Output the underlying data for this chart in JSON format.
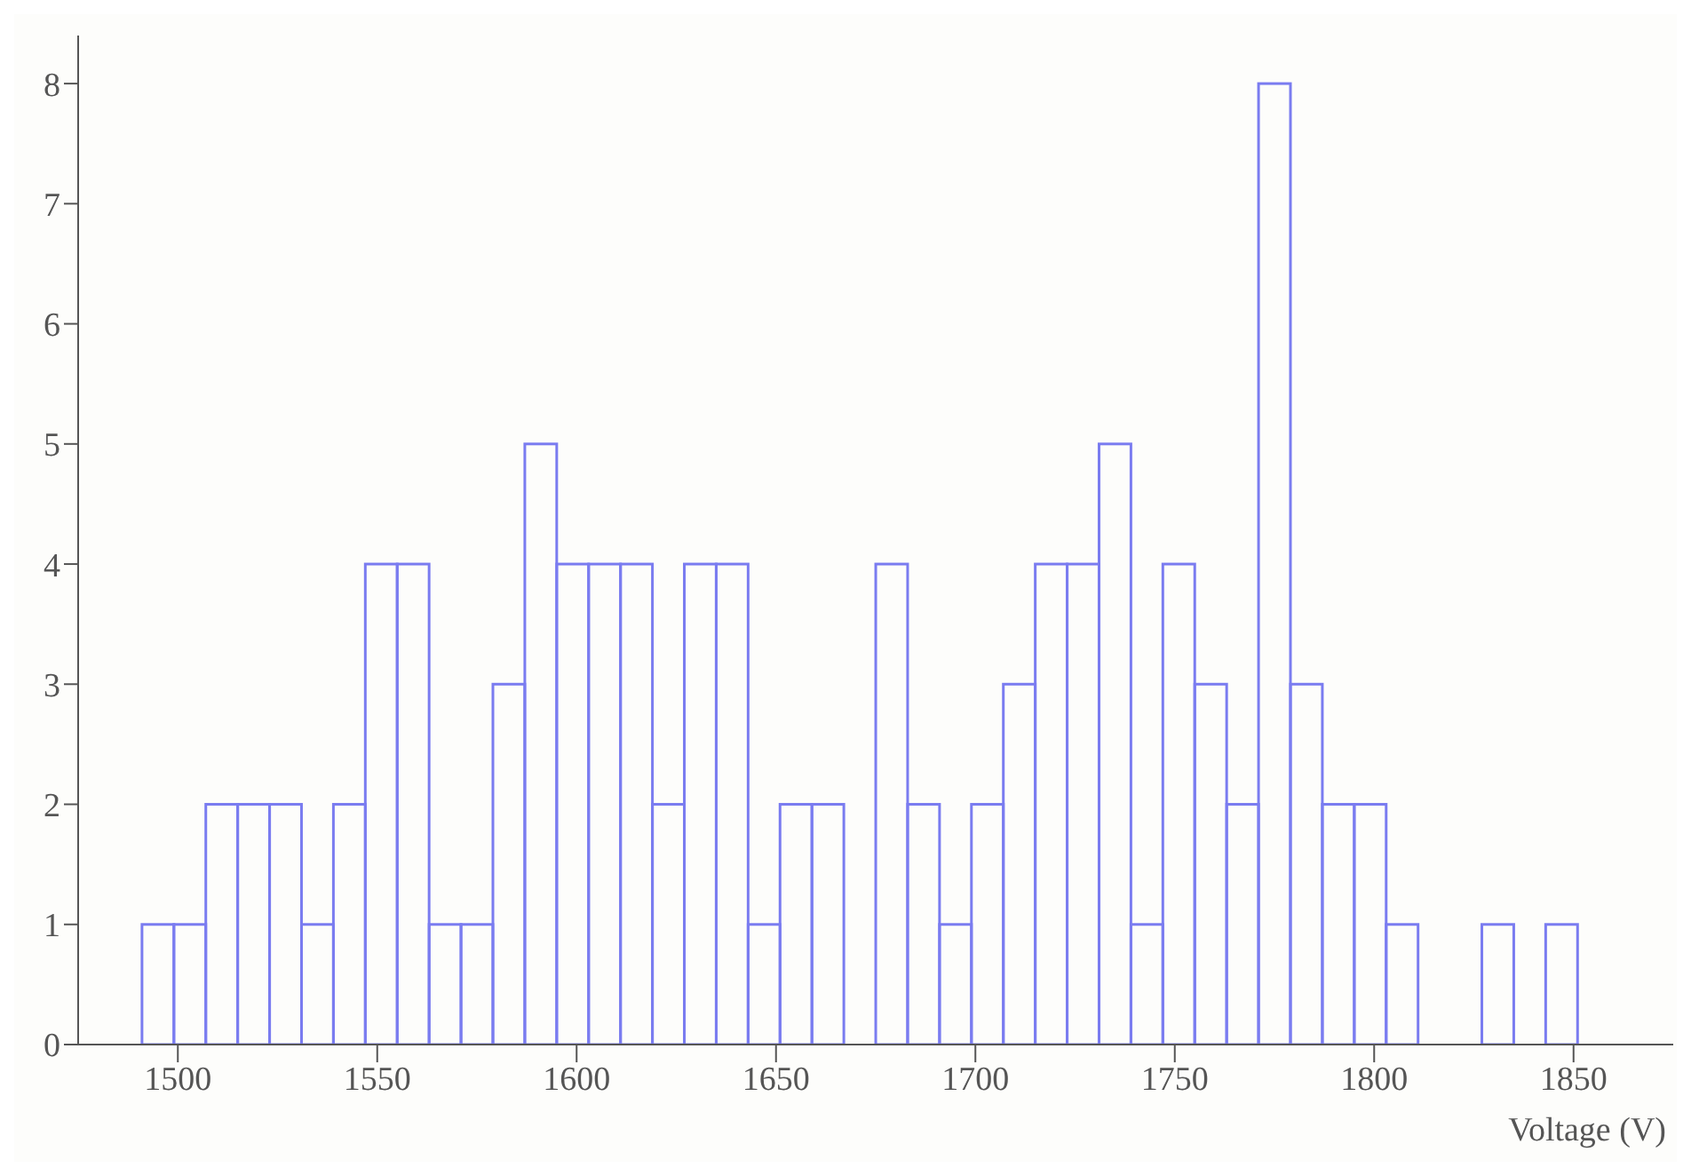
{
  "chart_data": {
    "type": "histogram",
    "xlabel": "Voltage (V)",
    "color": "#7a7cf0",
    "bins": [
      1491,
      1499,
      1507,
      1515,
      1523,
      1531,
      1539,
      1547,
      1555,
      1563,
      1571,
      1579,
      1587,
      1595,
      1603,
      1611,
      1619,
      1627,
      1635,
      1643,
      1651,
      1659,
      1667,
      1675,
      1683,
      1691,
      1699,
      1707,
      1715,
      1723,
      1731,
      1739,
      1747,
      1755,
      1763,
      1771,
      1779,
      1787,
      1795,
      1803,
      1811,
      1819,
      1827,
      1835,
      1843,
      1851
    ],
    "values": [
      1,
      1,
      2,
      2,
      2,
      1,
      2,
      4,
      4,
      1,
      1,
      3,
      5,
      4,
      4,
      4,
      2,
      4,
      4,
      1,
      2,
      2,
      0,
      4,
      2,
      1,
      2,
      3,
      4,
      4,
      5,
      1,
      4,
      3,
      2,
      8,
      3,
      2,
      2,
      1,
      0,
      0,
      1,
      0,
      1
    ],
    "xlim": [
      1475,
      1875
    ],
    "xticks": [
      1500,
      1550,
      1600,
      1650,
      1700,
      1750,
      1800,
      1850
    ],
    "ylim": [
      0,
      8.4
    ],
    "yticks": [
      0,
      1,
      2,
      3,
      4,
      5,
      6,
      7,
      8
    ],
    "grid": false
  }
}
